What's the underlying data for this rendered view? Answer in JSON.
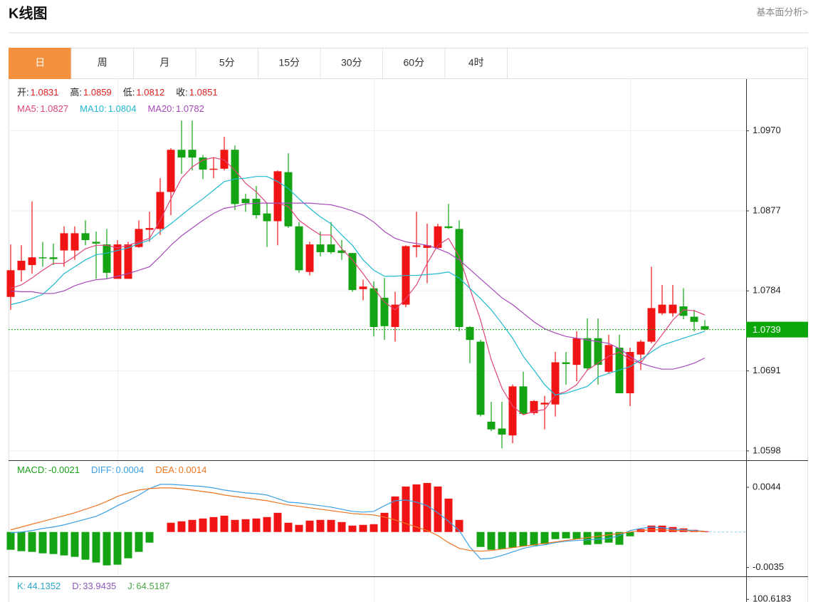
{
  "header": {
    "title": "K线图",
    "link": "基本面分析>"
  },
  "tabs": [
    "日",
    "周",
    "月",
    "5分",
    "15分",
    "30分",
    "60分",
    "4时"
  ],
  "active_tab": 0,
  "chart_data": [
    {
      "type": "candlestick",
      "info": [
        {
          "label": "开:",
          "value": 1.0831
        },
        {
          "label": "高:",
          "value": 1.0859
        },
        {
          "label": "低:",
          "value": 1.0812
        },
        {
          "label": "收:",
          "value": 1.0851
        }
      ],
      "info_color": "#e02020",
      "up_color": "#f01414",
      "down_color": "#13a313",
      "categories": [
        null,
        null,
        null,
        null,
        null,
        null,
        null,
        null,
        null,
        null,
        null,
        null,
        null,
        null,
        null,
        null,
        null,
        null,
        null,
        null,
        null,
        null,
        null,
        null,
        null,
        null,
        null,
        null,
        null,
        null,
        null,
        null,
        null,
        null,
        null,
        null,
        null,
        null,
        null,
        null,
        null,
        null,
        null,
        null,
        null,
        null,
        null,
        null,
        null,
        null,
        null,
        null,
        null,
        null,
        null,
        null,
        null,
        null,
        null,
        null,
        null,
        null,
        null,
        null,
        null,
        null
      ],
      "open": [
        1.0777,
        1.0808,
        1.0814,
        1.0823,
        1.0823,
        1.0831,
        1.0831,
        1.0851,
        1.0841,
        1.0838,
        1.0798,
        1.0798,
        1.0835,
        1.0855,
        1.0856,
        1.0899,
        1.0948,
        1.0948,
        1.0939,
        1.0925,
        1.0926,
        1.0948,
        1.0891,
        1.0891,
        1.0874,
        1.0865,
        1.0922,
        1.0859,
        1.0806,
        1.0838,
        1.0838,
        1.0831,
        1.0828,
        1.0786,
        1.0787,
        1.0776,
        1.0742,
        1.0768,
        1.0835,
        1.0834,
        1.0834,
        1.0859,
        1.0856,
        1.0742,
        1.0725,
        1.0632,
        1.0624,
        1.0616,
        1.0673,
        1.0642,
        1.0652,
        1.0652,
        1.0701,
        1.0698,
        1.0729,
        1.0729,
        1.069,
        1.0718,
        1.0665,
        1.071,
        1.0725,
        1.0758,
        1.0758,
        1.0766,
        1.0754,
        1.0743
      ],
      "high": [
        1.0838,
        1.0837,
        1.0888,
        1.0841,
        1.0839,
        1.0859,
        1.0859,
        1.0866,
        1.0853,
        1.0856,
        1.0843,
        1.0841,
        1.0866,
        1.0876,
        1.0915,
        1.095,
        1.0982,
        1.0982,
        1.0942,
        1.0939,
        1.0963,
        1.0953,
        1.0897,
        1.0906,
        1.0886,
        1.0924,
        1.0944,
        1.0864,
        1.0841,
        1.0853,
        1.0864,
        1.0843,
        1.0828,
        1.0797,
        1.0795,
        1.0799,
        1.0783,
        1.0837,
        1.0876,
        1.0862,
        1.0862,
        1.0885,
        1.0866,
        1.0743,
        1.0727,
        1.0655,
        1.0655,
        1.0675,
        1.069,
        1.0657,
        1.0662,
        1.0713,
        1.0713,
        1.0737,
        1.0752,
        1.0752,
        1.0733,
        1.0733,
        1.0718,
        1.0727,
        1.0812,
        1.0791,
        1.0791,
        1.0787,
        1.0762,
        1.075
      ],
      "low": [
        1.0762,
        1.0795,
        1.0804,
        1.0812,
        1.0814,
        1.0812,
        1.082,
        1.0837,
        1.0798,
        1.0798,
        1.0798,
        1.0798,
        1.0834,
        1.0841,
        1.0849,
        1.0872,
        1.092,
        1.0924,
        1.0914,
        1.0915,
        1.0924,
        1.0878,
        1.0876,
        1.0868,
        1.0835,
        1.0837,
        1.0857,
        1.0805,
        1.0802,
        1.0824,
        1.0827,
        1.082,
        1.0783,
        1.0773,
        1.0731,
        1.0727,
        1.0725,
        1.0765,
        1.0823,
        1.0793,
        1.0833,
        1.0856,
        1.0737,
        1.07,
        1.0638,
        1.0621,
        1.0601,
        1.0607,
        1.064,
        1.064,
        1.0623,
        1.0638,
        1.0675,
        1.0679,
        1.0692,
        1.0675,
        1.0688,
        1.0665,
        1.065,
        1.0692,
        1.0723,
        1.0756,
        1.0754,
        1.0751,
        1.0737,
        1.0738
      ],
      "close": [
        1.0808,
        1.0819,
        1.0823,
        1.0822,
        1.0821,
        1.0851,
        1.0851,
        1.0843,
        1.0839,
        1.0805,
        1.0838,
        1.0838,
        1.0856,
        1.0857,
        1.0899,
        1.0948,
        1.0939,
        1.0939,
        1.0925,
        1.0926,
        1.0948,
        1.0885,
        1.0886,
        1.0872,
        1.0865,
        1.0923,
        1.0859,
        1.0808,
        1.0838,
        1.0829,
        1.0829,
        1.0828,
        1.0785,
        1.0789,
        1.0742,
        1.0743,
        1.0768,
        1.0836,
        1.0837,
        1.0837,
        1.0859,
        1.0857,
        1.0742,
        1.0727,
        1.064,
        1.0623,
        1.0617,
        1.0673,
        1.0641,
        1.0656,
        1.0654,
        1.0701,
        1.0699,
        1.0729,
        1.0694,
        1.0698,
        1.0721,
        1.0665,
        1.0713,
        1.0725,
        1.0764,
        1.0768,
        1.0768,
        1.0755,
        1.0748,
        1.0739
      ],
      "series": [
        {
          "name": "MA5:",
          "legend_value": 1.0827,
          "color": "#e0457b",
          "values": [
            1.0787,
            1.0791,
            1.0799,
            1.0808,
            1.0816,
            1.0816,
            1.0824,
            1.0833,
            1.0837,
            1.0837,
            1.0834,
            1.0837,
            1.0841,
            1.0845,
            1.0866,
            1.0891,
            1.0915,
            1.0928,
            1.0936,
            1.0939,
            1.0936,
            1.0924,
            1.0909,
            1.0899,
            1.0886,
            1.0886,
            1.0882,
            1.0866,
            1.0857,
            1.0849,
            1.0849,
            1.0833,
            1.082,
            1.0804,
            1.0787,
            1.0771,
            1.0762,
            1.0775,
            1.0791,
            1.0816,
            1.0837,
            1.0845,
            1.0824,
            1.0787,
            1.075,
            1.0704,
            1.0671,
            1.065,
            1.064,
            1.0644,
            1.0646,
            1.0663,
            1.0667,
            1.0675,
            1.0692,
            1.07,
            1.0708,
            1.0713,
            1.0704,
            1.07,
            1.0717,
            1.0733,
            1.075,
            1.0762,
            1.0761,
            1.0756
          ]
        },
        {
          "name": "MA10:",
          "legend_value": 1.0804,
          "color": "#1fb9d0",
          "values": [
            1.0768,
            1.0771,
            1.0775,
            1.078,
            1.0791,
            1.0804,
            1.0812,
            1.082,
            1.0826,
            1.0828,
            1.0831,
            1.0834,
            1.0839,
            1.0843,
            1.0853,
            1.0862,
            1.0872,
            1.0882,
            1.0891,
            1.0901,
            1.0911,
            1.0914,
            1.0915,
            1.0917,
            1.0917,
            1.0911,
            1.0903,
            1.0891,
            1.088,
            1.087,
            1.0862,
            1.0849,
            1.0837,
            1.082,
            1.0808,
            1.0801,
            1.0801,
            1.0802,
            1.0802,
            1.0803,
            1.0804,
            1.0806,
            1.0799,
            1.0787,
            1.0775,
            1.0762,
            1.0746,
            1.0729,
            1.0708,
            1.0692,
            1.0675,
            1.0663,
            1.0665,
            1.0669,
            1.0673,
            1.0684,
            1.0688,
            1.0692,
            1.0696,
            1.0704,
            1.0713,
            1.0721,
            1.0725,
            1.0729,
            1.0733,
            1.0737
          ]
        },
        {
          "name": "MA20:",
          "legend_value": 1.0782,
          "color": "#a549b8",
          "values": [
            1.0784,
            1.0783,
            1.0783,
            1.0781,
            1.0781,
            1.0784,
            1.079,
            1.0794,
            1.0797,
            1.0798,
            1.0801,
            1.0804,
            1.0808,
            1.0812,
            1.0824,
            1.0837,
            1.0848,
            1.0857,
            1.0866,
            1.0874,
            1.088,
            1.0882,
            1.0885,
            1.0886,
            1.0886,
            1.0886,
            1.0886,
            1.0886,
            1.0886,
            1.0885,
            1.0884,
            1.0881,
            1.0877,
            1.0872,
            1.0864,
            1.0853,
            1.0845,
            1.0841,
            1.0839,
            1.0837,
            1.0833,
            1.0828,
            1.082,
            1.0809,
            1.0798,
            1.0787,
            1.0776,
            1.0768,
            1.0758,
            1.0748,
            1.074,
            1.0735,
            1.0731,
            1.0729,
            1.0727,
            1.0725,
            1.0723,
            1.0717,
            1.0708,
            1.07,
            1.0696,
            1.0693,
            1.0693,
            1.0696,
            1.07,
            1.0706
          ]
        }
      ],
      "current_price": 1.0739,
      "current_color": "#0aa60a",
      "ylim": [
        1.0588,
        1.1031
      ],
      "yticks": [
        {
          "value": 1.097,
          "label": "1.0970"
        },
        1.0877,
        1.0784,
        1.0691,
        1.0598
      ],
      "grid": true
    },
    {
      "type": "macd",
      "up_color": "#f01414",
      "down_color": "#13a313",
      "categories": [
        null,
        null,
        null,
        null,
        null,
        null,
        null,
        null,
        null,
        null,
        null,
        null,
        null,
        null,
        null,
        null,
        null,
        null,
        null,
        null,
        null,
        null,
        null,
        null,
        null,
        null,
        null,
        null,
        null,
        null,
        null,
        null,
        null,
        null,
        null,
        null,
        null,
        null,
        null,
        null,
        null,
        null,
        null,
        null,
        null,
        null,
        null,
        null,
        null,
        null,
        null,
        null,
        null,
        null,
        null,
        null,
        null,
        null,
        null,
        null,
        null,
        null,
        null,
        null,
        null,
        null
      ],
      "series": [
        {
          "name": "MACD:",
          "legend_value": -0.0021,
          "color": "#1a9f1a",
          "values": [
            -0.00175,
            -0.00189,
            -0.00196,
            -0.0021,
            -0.00217,
            -0.00231,
            -0.00245,
            -0.00273,
            -0.00301,
            -0.00329,
            -0.00322,
            -0.00259,
            -0.00196,
            -0.00105,
            0,
            0.00091,
            0.00105,
            0.00119,
            0.00133,
            0.00147,
            0.00161,
            0.00119,
            0.00126,
            0.00133,
            0.00147,
            0.00189,
            0.00091,
            0.0007,
            0.00112,
            0.00119,
            0.00119,
            0.00098,
            0.00063,
            0.0007,
            0.00077,
            0.00189,
            0.0035,
            0.00448,
            0.00469,
            0.00483,
            0.00448,
            0.00329,
            0.00119,
            0,
            -0.00147,
            -0.00175,
            -0.00168,
            -0.00154,
            -0.0014,
            -0.00133,
            -0.00119,
            -0.0007,
            -0.00063,
            -0.0007,
            -0.00126,
            -0.00119,
            -0.00105,
            -0.00126,
            -0.00042,
            0.00028,
            0.00063,
            0.00063,
            0.00049,
            0.00035,
            0.00021,
            7e-05
          ]
        },
        {
          "name": "DIFF:",
          "legend_value": 0.0004,
          "color": "#3ca0e6",
          "values": [
            -7e-05,
            0,
            0.00014,
            0.00035,
            0.00049,
            0.0007,
            0.00098,
            0.00126,
            0.00154,
            0.00203,
            0.00259,
            0.00308,
            0.00364,
            0.00427,
            0.00469,
            0.00469,
            0.00462,
            0.00455,
            0.00448,
            0.00434,
            0.00413,
            0.00399,
            0.00385,
            0.00378,
            0.00364,
            0.00329,
            0.00294,
            0.00287,
            0.00273,
            0.00259,
            0.00245,
            0.00224,
            0.00203,
            0.00196,
            0.00203,
            0.00259,
            0.00308,
            0.00315,
            0.00294,
            0.00259,
            0.00189,
            0.00105,
            0.00014,
            -0.00147,
            -0.00266,
            -0.00259,
            -0.00231,
            -0.00196,
            -0.00161,
            -0.0014,
            -0.00126,
            -0.00105,
            -0.00091,
            -0.00084,
            -0.00077,
            -0.0007,
            -0.00063,
            -0.00035,
            0.00014,
            0.00035,
            0.00049,
            0.00042,
            0.00028,
            0.00021,
            0.00014,
            7e-05
          ]
        },
        {
          "name": "DEA:",
          "legend_value": 0.0014,
          "color": "#ee7621",
          "values": [
            0.00021,
            0.00049,
            0.00077,
            0.00105,
            0.00133,
            0.00161,
            0.00189,
            0.00224,
            0.00259,
            0.00301,
            0.0035,
            0.00385,
            0.00413,
            0.00427,
            0.00434,
            0.00434,
            0.00427,
            0.00413,
            0.00399,
            0.00385,
            0.00364,
            0.0035,
            0.00336,
            0.00322,
            0.00308,
            0.00287,
            0.00266,
            0.00252,
            0.00238,
            0.00224,
            0.0021,
            0.00196,
            0.00182,
            0.00175,
            0.00168,
            0.00147,
            0.00119,
            0.00084,
            0.00049,
            0.00014,
            -0.00035,
            -0.00105,
            -0.00161,
            -0.00182,
            -0.00189,
            -0.00182,
            -0.00168,
            -0.00154,
            -0.0014,
            -0.00126,
            -0.00112,
            -0.00098,
            -0.00084,
            -0.0007,
            -0.00056,
            -0.00042,
            -0.00028,
            -0.00014,
            0,
            0.00014,
            0.00021,
            0.00021,
            0.00014,
            0.00014,
            7e-05,
            7e-05
          ]
        }
      ],
      "ylim": [
        -0.0043,
        0.007
      ],
      "yticks": [
        0.0044,
        -0.0035
      ]
    },
    {
      "type": "kdj",
      "series": [
        {
          "name": "K:",
          "legend_value": 44.1352,
          "color": "#29a8c9"
        },
        {
          "name": "D:",
          "legend_value": 33.9435,
          "color": "#8a58b8"
        },
        {
          "name": "J:",
          "legend_value": 64.5187,
          "color": "#4aa84a"
        }
      ],
      "ylim": [
        -12,
        128
      ],
      "yticks": [
        100.6183
      ]
    }
  ]
}
